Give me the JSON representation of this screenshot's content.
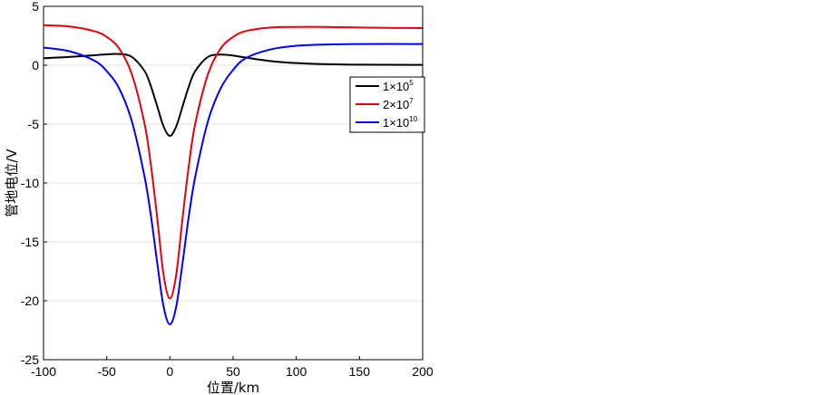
{
  "chart_data": {
    "type": "line",
    "title": "",
    "xlabel": "位置/km",
    "ylabel": "管地电位/V",
    "xlim": [
      -100,
      200
    ],
    "ylim": [
      -25,
      5
    ],
    "xticks": [
      -100,
      -50,
      0,
      50,
      100,
      150,
      200
    ],
    "yticks": [
      5,
      0,
      -5,
      -10,
      -15,
      -20,
      -25
    ],
    "grid": "horizontal",
    "legend_position": "right, upper-middle",
    "series": [
      {
        "name": "1×10^5",
        "label_base": "1×10",
        "label_exp": "5",
        "color": "#000000",
        "x": [
          -100,
          -80,
          -60,
          -50,
          -40,
          -30,
          -20,
          -15,
          -10,
          -5,
          0,
          5,
          10,
          15,
          20,
          30,
          40,
          50,
          60,
          80,
          100,
          120,
          150,
          200
        ],
        "y": [
          0.6,
          0.7,
          0.85,
          0.92,
          0.95,
          0.7,
          -0.5,
          -1.8,
          -3.5,
          -5.2,
          -6.0,
          -5.2,
          -3.5,
          -1.8,
          -0.5,
          0.7,
          0.9,
          0.82,
          0.65,
          0.35,
          0.18,
          0.1,
          0.05,
          0.03
        ]
      },
      {
        "name": "2×10^7",
        "label_base": "2×10",
        "label_exp": "7",
        "color": "#e8000b",
        "x": [
          -100,
          -80,
          -60,
          -50,
          -40,
          -30,
          -20,
          -15,
          -10,
          -5,
          0,
          5,
          10,
          15,
          20,
          30,
          40,
          50,
          60,
          80,
          100,
          120,
          150,
          200
        ],
        "y": [
          3.4,
          3.3,
          2.9,
          2.4,
          1.4,
          -0.8,
          -5.0,
          -8.5,
          -13.0,
          -17.8,
          -19.8,
          -17.8,
          -13.0,
          -8.5,
          -5.0,
          -0.8,
          1.4,
          2.4,
          2.9,
          3.2,
          3.25,
          3.25,
          3.2,
          3.15
        ]
      },
      {
        "name": "1×10^10",
        "label_base": "1×10",
        "label_exp": "10",
        "color": "#0000ff",
        "x": [
          -100,
          -80,
          -60,
          -50,
          -40,
          -30,
          -20,
          -15,
          -10,
          -5,
          0,
          5,
          10,
          15,
          20,
          30,
          40,
          50,
          60,
          80,
          100,
          120,
          150,
          200
        ],
        "y": [
          1.5,
          1.2,
          0.4,
          -0.5,
          -2.0,
          -4.8,
          -9.5,
          -12.8,
          -16.8,
          -20.5,
          -22.0,
          -20.5,
          -16.8,
          -12.8,
          -9.5,
          -4.8,
          -2.0,
          -0.4,
          0.6,
          1.35,
          1.65,
          1.75,
          1.8,
          1.8
        ]
      }
    ]
  }
}
